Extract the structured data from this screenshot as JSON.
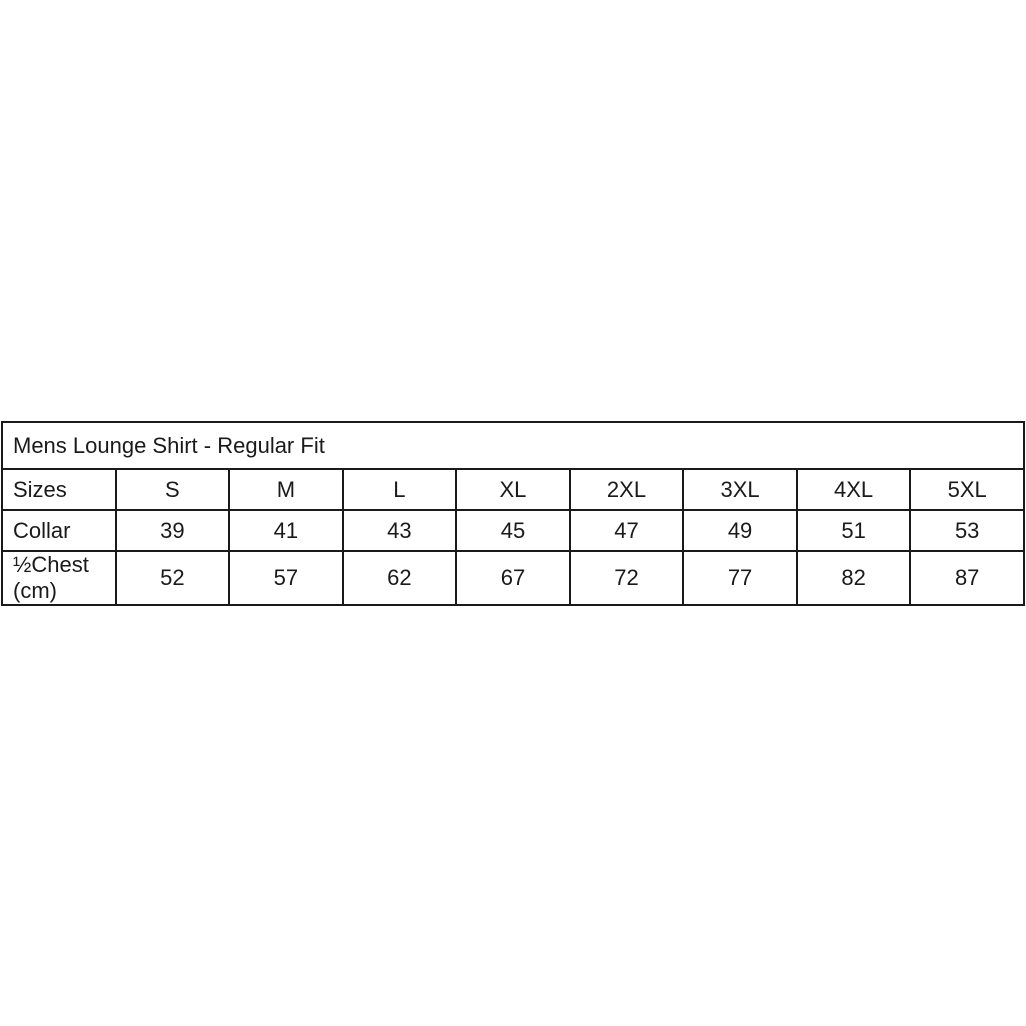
{
  "title": "Mens Lounge Shirt - Regular Fit",
  "rows": [
    {
      "label": "Sizes",
      "values": [
        "S",
        "M",
        "L",
        "XL",
        "2XL",
        "3XL",
        "4XL",
        "5XL"
      ]
    },
    {
      "label": "Collar",
      "values": [
        "39",
        "41",
        "43",
        "45",
        "47",
        "49",
        "51",
        "53"
      ]
    },
    {
      "label": "½Chest (cm)",
      "values": [
        "52",
        "57",
        "62",
        "67",
        "72",
        "77",
        "82",
        "87"
      ]
    }
  ]
}
